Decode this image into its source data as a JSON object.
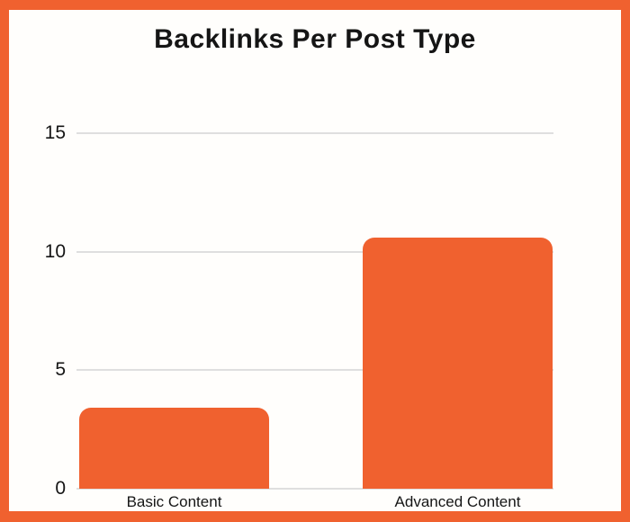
{
  "chart_data": {
    "type": "bar",
    "title": "Backlinks Per Post Type",
    "categories": [
      "Basic Content",
      "Advanced Content"
    ],
    "values": [
      3.4,
      10.6
    ],
    "xlabel": "",
    "ylabel": "",
    "ylim": [
      0,
      15
    ],
    "yticks": [
      0,
      5,
      10,
      15
    ],
    "grid": true,
    "legend_position": "none",
    "colors": {
      "bar": "#F0612F",
      "frame_border": "#F0612F",
      "gridline": "#DFDFDF",
      "text": "#151515",
      "background": "#FFFEFC"
    }
  }
}
